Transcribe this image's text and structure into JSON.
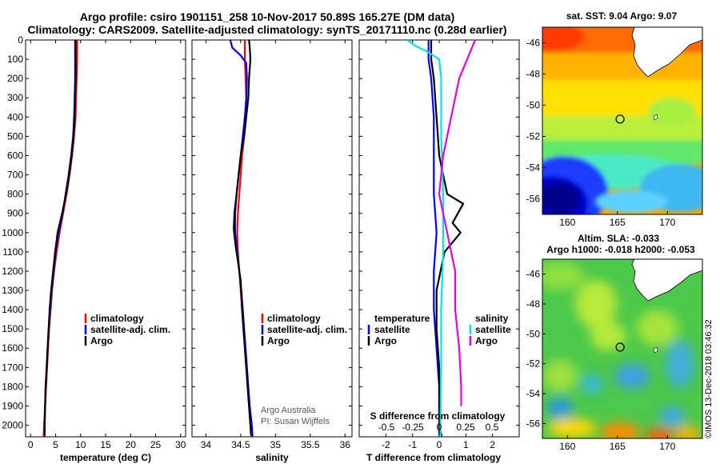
{
  "header": {
    "title_line1": "Argo profile: csiro 1901151_258 10-Nov-2017 50.89S 165.27E (DM data)",
    "title_line2": "Climatology: CARS2009. Satellite-adjusted climatology: synTS_20171110.nc (0.28d earlier)"
  },
  "colors": {
    "climatology": "#ff0000",
    "satellite": "#0000ff",
    "argo": "#000000",
    "sal_satellite": "#00e5e5",
    "sal_argo": "#e600e6"
  },
  "chart_data": [
    {
      "type": "line",
      "xlabel": "temperature (deg C)",
      "ylabel": "",
      "xlim": [
        -1,
        31
      ],
      "ylim": [
        2060,
        0
      ],
      "xticks": [
        0,
        5,
        10,
        15,
        20,
        25,
        30
      ],
      "yticks": [
        0,
        100,
        200,
        300,
        400,
        500,
        600,
        700,
        800,
        900,
        1000,
        1100,
        1200,
        1300,
        1400,
        1500,
        1600,
        1700,
        1800,
        1900,
        2000
      ],
      "legend": [
        "climatology",
        "satellite-adj. clim.",
        "Argo"
      ],
      "series": [
        {
          "name": "climatology",
          "color_key": "climatology",
          "points": [
            [
              9.3,
              0
            ],
            [
              9.3,
              100
            ],
            [
              9.2,
              200
            ],
            [
              9.1,
              300
            ],
            [
              9.0,
              400
            ],
            [
              8.7,
              500
            ],
            [
              8.3,
              600
            ],
            [
              7.8,
              700
            ],
            [
              7.2,
              800
            ],
            [
              6.5,
              900
            ],
            [
              5.8,
              1000
            ],
            [
              5.2,
              1100
            ],
            [
              4.7,
              1200
            ],
            [
              4.3,
              1300
            ],
            [
              4.0,
              1400
            ],
            [
              3.7,
              1500
            ],
            [
              3.5,
              1600
            ],
            [
              3.3,
              1700
            ],
            [
              3.1,
              1800
            ],
            [
              2.9,
              1900
            ],
            [
              2.7,
              2000
            ],
            [
              2.6,
              2060
            ]
          ]
        },
        {
          "name": "satellite-adj. clim.",
          "color_key": "satellite",
          "points": [
            [
              8.9,
              0
            ],
            [
              8.9,
              100
            ],
            [
              8.9,
              200
            ],
            [
              8.8,
              300
            ],
            [
              8.7,
              400
            ],
            [
              8.5,
              500
            ],
            [
              8.1,
              600
            ],
            [
              7.6,
              700
            ],
            [
              7.0,
              800
            ],
            [
              6.4,
              900
            ],
            [
              5.6,
              1000
            ],
            [
              5.0,
              1100
            ],
            [
              4.6,
              1200
            ],
            [
              4.2,
              1300
            ],
            [
              3.9,
              1400
            ],
            [
              3.6,
              1500
            ],
            [
              3.4,
              1600
            ],
            [
              3.2,
              1700
            ],
            [
              3.0,
              1800
            ],
            [
              2.9,
              1900
            ],
            [
              2.8,
              2000
            ],
            [
              2.8,
              2060
            ]
          ]
        },
        {
          "name": "Argo",
          "color_key": "argo",
          "points": [
            [
              9.0,
              0
            ],
            [
              9.0,
              100
            ],
            [
              9.0,
              200
            ],
            [
              8.9,
              300
            ],
            [
              8.8,
              400
            ],
            [
              8.6,
              500
            ],
            [
              8.2,
              600
            ],
            [
              7.7,
              700
            ],
            [
              7.1,
              800
            ],
            [
              6.3,
              900
            ],
            [
              5.4,
              1000
            ],
            [
              4.9,
              1100
            ],
            [
              4.5,
              1200
            ],
            [
              4.1,
              1300
            ],
            [
              3.8,
              1400
            ],
            [
              3.6,
              1500
            ],
            [
              3.4,
              1600
            ],
            [
              3.2,
              1700
            ],
            [
              3.0,
              1800
            ],
            [
              2.9,
              1900
            ],
            [
              2.8,
              2000
            ],
            [
              2.8,
              2050
            ]
          ]
        }
      ]
    },
    {
      "type": "line",
      "xlabel": "salinity",
      "ylabel": "",
      "xlim": [
        33.8,
        36.1
      ],
      "ylim": [
        2060,
        0
      ],
      "xticks": [
        34,
        34.5,
        35,
        35.5,
        36
      ],
      "legend": [
        "climatology",
        "satellite-adj. clim.",
        "Argo"
      ],
      "annotation": [
        "Argo Australia",
        "PI: Susan Wijffels"
      ],
      "series": [
        {
          "name": "climatology",
          "color_key": "climatology",
          "points": [
            [
              34.56,
              0
            ],
            [
              34.56,
              100
            ],
            [
              34.57,
              200
            ],
            [
              34.58,
              300
            ],
            [
              34.57,
              400
            ],
            [
              34.55,
              500
            ],
            [
              34.52,
              600
            ],
            [
              34.5,
              700
            ],
            [
              34.48,
              800
            ],
            [
              34.46,
              900
            ],
            [
              34.45,
              1000
            ],
            [
              34.46,
              1100
            ],
            [
              34.48,
              1200
            ],
            [
              34.5,
              1300
            ],
            [
              34.52,
              1400
            ],
            [
              34.54,
              1500
            ],
            [
              34.56,
              1600
            ],
            [
              34.58,
              1700
            ],
            [
              34.6,
              1800
            ],
            [
              34.62,
              1900
            ],
            [
              34.64,
              2000
            ],
            [
              34.65,
              2060
            ]
          ]
        },
        {
          "name": "satellite-adj. clim.",
          "color_key": "satellite",
          "points": [
            [
              34.35,
              0
            ],
            [
              34.38,
              40
            ],
            [
              34.5,
              80
            ],
            [
              34.58,
              120
            ],
            [
              34.59,
              200
            ],
            [
              34.58,
              300
            ],
            [
              34.56,
              400
            ],
            [
              34.53,
              500
            ],
            [
              34.5,
              600
            ],
            [
              34.47,
              700
            ],
            [
              34.44,
              800
            ],
            [
              34.42,
              900
            ],
            [
              34.42,
              1000
            ],
            [
              34.45,
              1100
            ],
            [
              34.48,
              1200
            ],
            [
              34.51,
              1300
            ],
            [
              34.53,
              1400
            ],
            [
              34.55,
              1500
            ],
            [
              34.57,
              1600
            ],
            [
              34.59,
              1700
            ],
            [
              34.61,
              1800
            ],
            [
              34.63,
              1900
            ],
            [
              34.66,
              2000
            ],
            [
              34.67,
              2060
            ]
          ]
        },
        {
          "name": "Argo",
          "color_key": "argo",
          "points": [
            [
              34.62,
              0
            ],
            [
              34.63,
              40
            ],
            [
              34.64,
              100
            ],
            [
              34.62,
              200
            ],
            [
              34.61,
              300
            ],
            [
              34.58,
              400
            ],
            [
              34.55,
              500
            ],
            [
              34.5,
              600
            ],
            [
              34.47,
              700
            ],
            [
              34.44,
              800
            ],
            [
              34.41,
              900
            ],
            [
              34.4,
              980
            ],
            [
              34.42,
              1050
            ],
            [
              34.46,
              1150
            ],
            [
              34.5,
              1250
            ],
            [
              34.52,
              1400
            ],
            [
              34.55,
              1550
            ],
            [
              34.58,
              1700
            ],
            [
              34.61,
              1850
            ],
            [
              34.64,
              2000
            ],
            [
              34.65,
              2050
            ]
          ]
        }
      ]
    },
    {
      "type": "line",
      "xlabel": "T difference from climatology",
      "ylabel": "",
      "xlim": [
        -3,
        3
      ],
      "ylim": [
        2060,
        0
      ],
      "xticks": [
        -2,
        -1,
        0,
        1,
        2
      ],
      "secondary_xlabel": "S difference from climatology",
      "secondary_xticks": [
        "-0.5",
        "-0.25",
        "0",
        "0.25",
        "0.5"
      ],
      "legend_temperature": [
        "temperature",
        "satellite",
        "Argo"
      ],
      "legend_salinity": [
        "salinity",
        "satellite",
        "Argo"
      ],
      "series": [
        {
          "name": "satellite",
          "group": "temperature",
          "color_key": "satellite",
          "points": [
            [
              -0.4,
              0
            ],
            [
              -0.4,
              100
            ],
            [
              -0.3,
              200
            ],
            [
              -0.2,
              400
            ],
            [
              -0.2,
              600
            ],
            [
              -0.2,
              800
            ],
            [
              -0.1,
              1000
            ],
            [
              -0.2,
              1200
            ],
            [
              -0.2,
              1400
            ],
            [
              -0.1,
              1600
            ],
            [
              0.0,
              1800
            ],
            [
              0.0,
              2000
            ],
            [
              0.1,
              2060
            ]
          ]
        },
        {
          "name": "Argo",
          "group": "temperature",
          "color_key": "argo",
          "points": [
            [
              -0.3,
              0
            ],
            [
              -0.3,
              100
            ],
            [
              -0.2,
              200
            ],
            [
              -0.1,
              400
            ],
            [
              0.0,
              600
            ],
            [
              0.3,
              800
            ],
            [
              0.9,
              850
            ],
            [
              0.5,
              950
            ],
            [
              0.8,
              1000
            ],
            [
              0.2,
              1100
            ],
            [
              -0.1,
              1300
            ],
            [
              -0.1,
              1500
            ],
            [
              0.0,
              1700
            ],
            [
              0.0,
              1900
            ],
            [
              0.0,
              2050
            ]
          ]
        },
        {
          "name": "satellite",
          "group": "salinity",
          "color_key": "sal_satellite",
          "points": [
            [
              -0.8,
              0
            ],
            [
              -0.6,
              30
            ],
            [
              -0.3,
              60
            ],
            [
              0.0,
              100
            ],
            [
              0.05,
              200
            ],
            [
              0.05,
              500
            ],
            [
              0.1,
              800
            ],
            [
              0.1,
              1100
            ],
            [
              0.05,
              1400
            ],
            [
              0.05,
              1700
            ],
            [
              0.03,
              2000
            ],
            [
              0.03,
              2060
            ]
          ]
        },
        {
          "name": "Argo",
          "group": "salinity",
          "color_key": "sal_argo",
          "points": [
            [
              0.9,
              0
            ],
            [
              0.7,
              100
            ],
            [
              0.5,
              200
            ],
            [
              0.3,
              400
            ],
            [
              0.1,
              600
            ],
            [
              0.0,
              800
            ],
            [
              0.2,
              1000
            ],
            [
              0.4,
              1200
            ],
            [
              0.4,
              1400
            ],
            [
              0.5,
              1600
            ],
            [
              0.55,
              1800
            ],
            [
              0.55,
              1900
            ]
          ]
        }
      ]
    },
    {
      "type": "heatmap",
      "title": "sat. SST: 9.04 Argo: 9.07",
      "xlim": [
        157.5,
        173.5
      ],
      "ylim": [
        -57,
        -45
      ],
      "xticks": [
        160,
        165,
        170
      ],
      "yticks": [
        -46,
        -48,
        -50,
        -52,
        -54,
        -56
      ],
      "marker": [
        165.27,
        -50.89
      ]
    },
    {
      "type": "heatmap",
      "title": "Altim. SLA: -0.033",
      "subtitle": "Argo h1000: -0.018 h2000: -0.053",
      "xlim": [
        157.5,
        173.5
      ],
      "ylim": [
        -57,
        -45
      ],
      "xticks": [
        160,
        165,
        170
      ],
      "yticks": [
        -46,
        -48,
        -50,
        -52,
        -54,
        -56
      ],
      "marker": [
        165.27,
        -50.89
      ]
    }
  ],
  "footer": {
    "side_text": "©IMOS 13-Dec-2018 03:46:32"
  }
}
